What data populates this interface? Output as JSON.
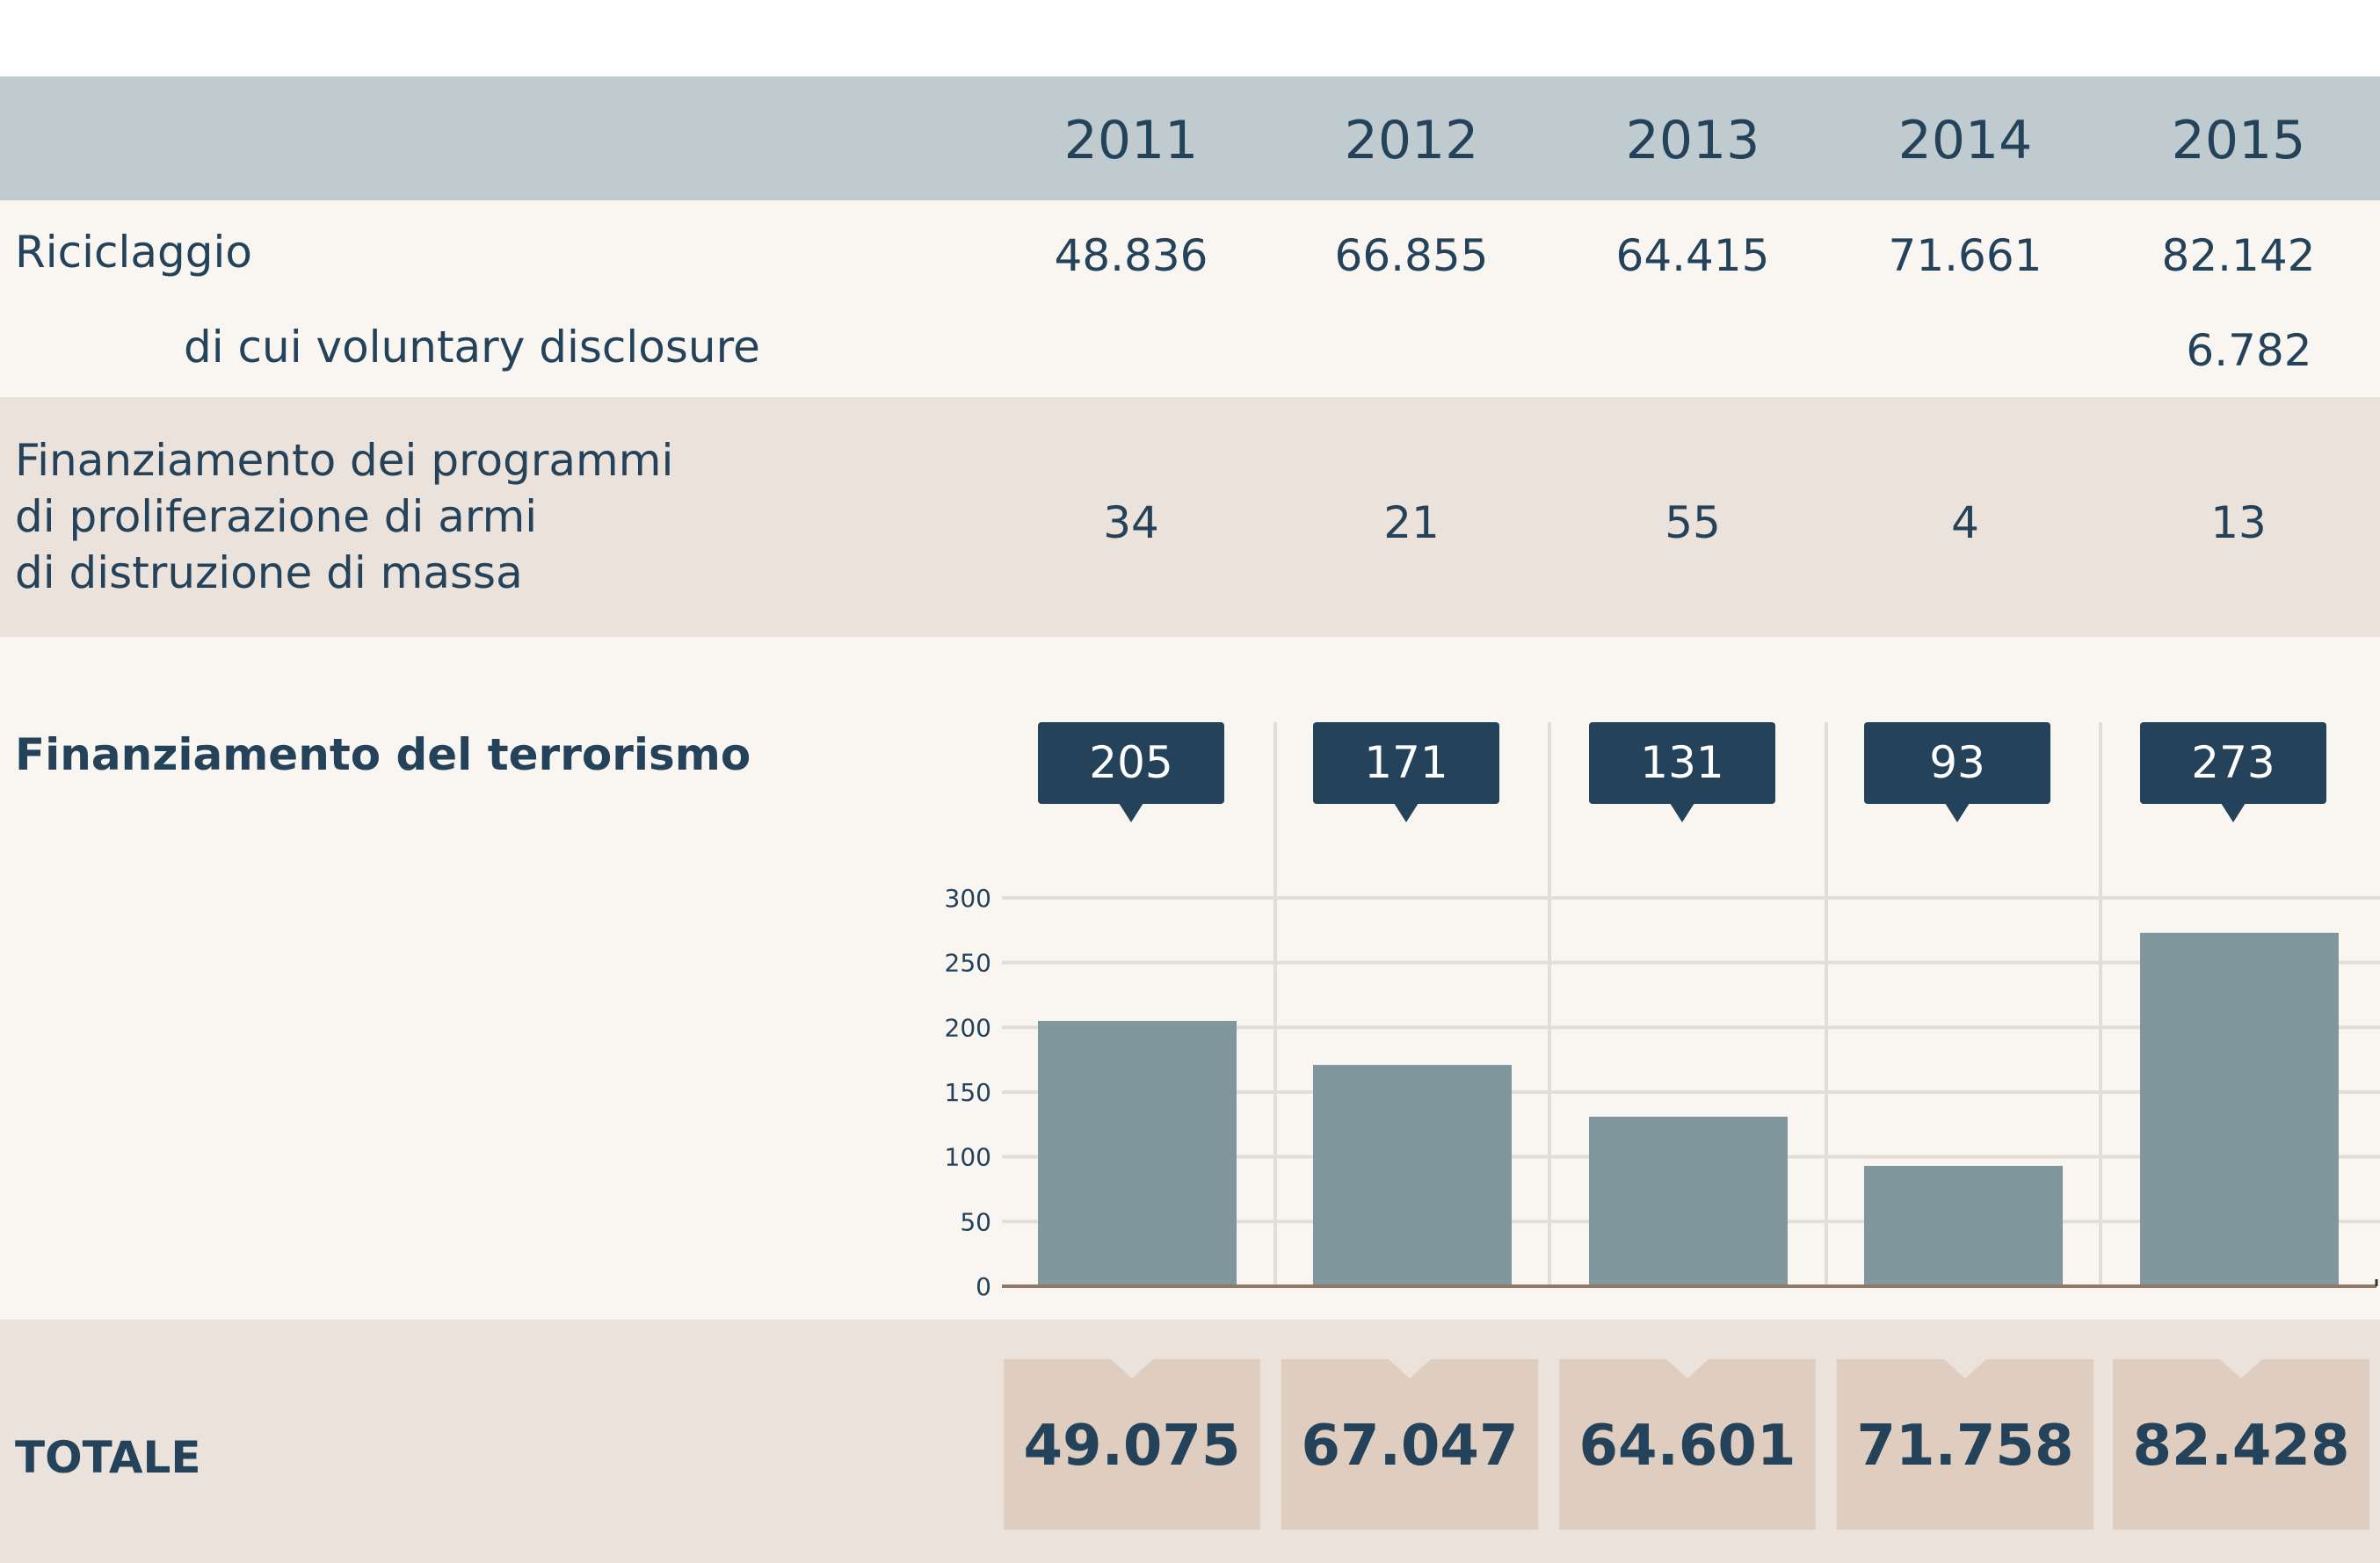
{
  "header": {
    "years": [
      "2011",
      "2012",
      "2013",
      "2014",
      "2015"
    ]
  },
  "rows": {
    "riciclaggio": {
      "label": "Riciclaggio",
      "values": [
        "48.836",
        "66.855",
        "64.415",
        "71.661",
        "82.142"
      ]
    },
    "voluntary": {
      "label": "di cui voluntary disclosure",
      "values": [
        "",
        "",
        "",
        "",
        "6.782"
      ]
    },
    "proliferazione": {
      "label_lines": [
        "Finanziamento dei programmi",
        "di proliferazione di armi",
        "di distruzione di massa"
      ],
      "values": [
        "34",
        "21",
        "55",
        "4",
        "13"
      ]
    },
    "terrorismo": {
      "label": "Finanziamento del terrorismo"
    },
    "totale": {
      "label": "TOTALE",
      "values": [
        "49.075",
        "67.047",
        "64.601",
        "71.758",
        "82.428"
      ]
    }
  },
  "colors": {
    "header_bg": "#bfcbcf",
    "light_bg": "#f9f6f1",
    "dark_bg": "#ebe2dc",
    "bar": "#7f979d",
    "callout": "#24425a",
    "total_box": "#dfcebf",
    "text": "#24425a"
  },
  "chart_data": {
    "type": "bar",
    "title": "Finanziamento del terrorismo",
    "categories": [
      "2011",
      "2012",
      "2013",
      "2014",
      "2015"
    ],
    "values": [
      205,
      171,
      131,
      93,
      273
    ],
    "value_labels": [
      "205",
      "171",
      "131",
      "93",
      "273"
    ],
    "xlabel": "",
    "ylabel": "",
    "ylim": [
      0,
      300
    ],
    "yticks": [
      "0",
      "50",
      "100",
      "150",
      "200",
      "250",
      "300"
    ],
    "grid": true,
    "legend": "none"
  }
}
